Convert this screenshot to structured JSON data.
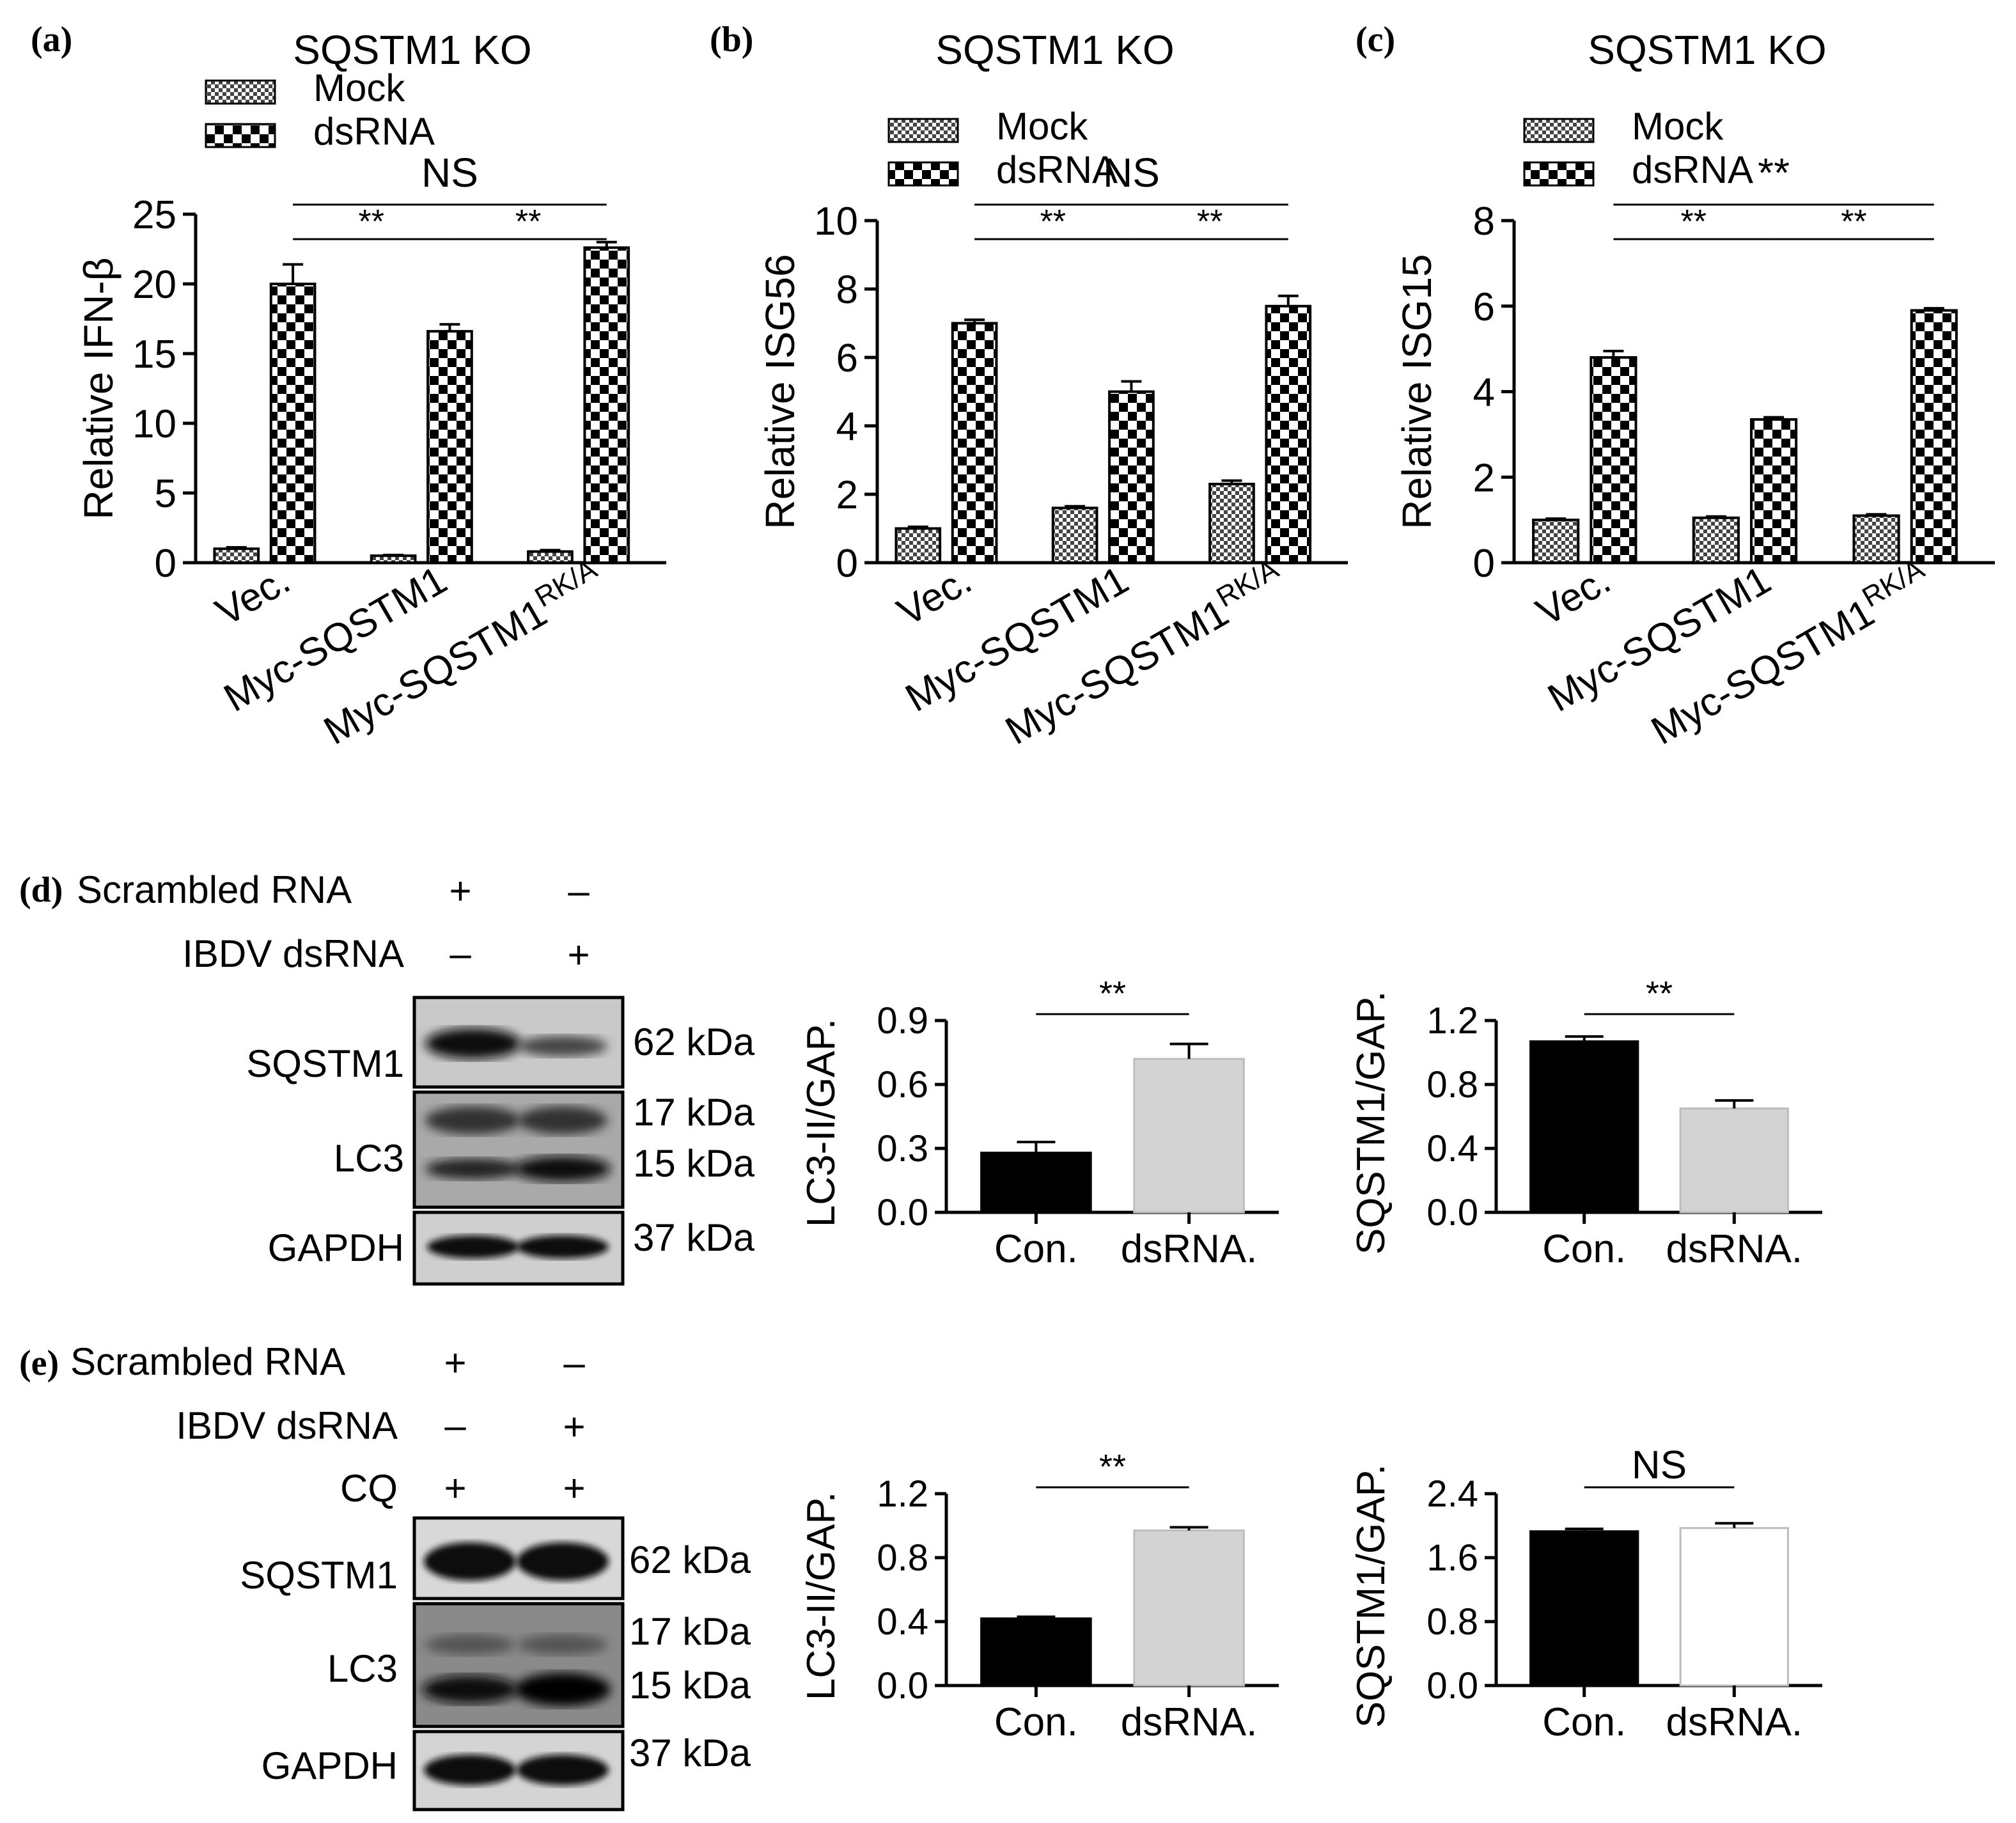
{
  "panel_labels": {
    "a": "(a)",
    "b": "(b)",
    "c": "(c)",
    "d": "(d)",
    "e": "(e)"
  },
  "legend_labels": {
    "mock": "Mock",
    "dsrna": "dsRNA"
  },
  "colors": {
    "mock_pattern": "fine-checker",
    "dsrna_pattern": "coarse-checker",
    "con_bar": "#000000",
    "dsrna_bar": "#d3d3d3",
    "white_bar": "#ffffff"
  },
  "chart_data": [
    {
      "id": "a",
      "type": "bar",
      "title": "SQSTM1 KO",
      "ylabel": "Relative IFN-β",
      "categories": [
        "Vec.",
        "Myc-SQSTM1",
        "Myc-SQSTM1"
      ],
      "category_sup": [
        "",
        "",
        "RK/A"
      ],
      "ylim": [
        0,
        25
      ],
      "yticks": [
        "0",
        "5",
        "10",
        "15",
        "20",
        "25"
      ],
      "series": [
        {
          "name": "Mock",
          "values": [
            1.0,
            0.5,
            0.8
          ],
          "errors": [
            0.1,
            0.05,
            0.1
          ]
        },
        {
          "name": "dsRNA",
          "values": [
            20.0,
            16.6,
            22.6
          ],
          "errors": [
            1.4,
            0.5,
            0.4
          ]
        }
      ],
      "significance": [
        {
          "from": 1,
          "to": 3,
          "label": "NS"
        },
        {
          "from": 1,
          "to": 2,
          "label": "**"
        },
        {
          "from": 2,
          "to": 3,
          "label": "**"
        }
      ]
    },
    {
      "id": "b",
      "type": "bar",
      "title": "SQSTM1 KO",
      "ylabel": "Relative ISG56",
      "categories": [
        "Vec.",
        "Myc-SQSTM1",
        "Myc-SQSTM1"
      ],
      "category_sup": [
        "",
        "",
        "RK/A"
      ],
      "ylim": [
        0,
        10
      ],
      "yticks": [
        "0",
        "2",
        "4",
        "6",
        "8",
        "10"
      ],
      "series": [
        {
          "name": "Mock",
          "values": [
            1.0,
            1.6,
            2.3
          ],
          "errors": [
            0.05,
            0.05,
            0.1
          ]
        },
        {
          "name": "dsRNA",
          "values": [
            7.0,
            5.0,
            7.5
          ],
          "errors": [
            0.1,
            0.3,
            0.3
          ]
        }
      ],
      "significance": [
        {
          "from": 1,
          "to": 3,
          "label": "NS"
        },
        {
          "from": 1,
          "to": 2,
          "label": "**"
        },
        {
          "from": 2,
          "to": 3,
          "label": "**"
        }
      ]
    },
    {
      "id": "c",
      "type": "bar",
      "title": "SQSTM1 KO",
      "ylabel": "Relative ISG15",
      "categories": [
        "Vec.",
        "Myc-SQSTM1",
        "Myc-SQSTM1"
      ],
      "category_sup": [
        "",
        "",
        "RK/A"
      ],
      "ylim": [
        0,
        8
      ],
      "yticks": [
        "0",
        "2",
        "4",
        "6",
        "8"
      ],
      "series": [
        {
          "name": "Mock",
          "values": [
            1.0,
            1.05,
            1.1
          ],
          "errors": [
            0.03,
            0.03,
            0.03
          ]
        },
        {
          "name": "dsRNA",
          "values": [
            4.8,
            3.35,
            5.9
          ],
          "errors": [
            0.15,
            0.05,
            0.05
          ]
        }
      ],
      "significance": [
        {
          "from": 1,
          "to": 3,
          "label": "**"
        },
        {
          "from": 1,
          "to": 2,
          "label": "**"
        },
        {
          "from": 2,
          "to": 3,
          "label": "**"
        }
      ]
    },
    {
      "id": "d1",
      "type": "bar",
      "title": "",
      "ylabel": "LC3-II/GAP.",
      "categories": [
        "Con.",
        "dsRNA."
      ],
      "ylim": [
        0,
        0.9
      ],
      "yticks": [
        "0.0",
        "0.3",
        "0.6",
        "0.9"
      ],
      "values": [
        0.28,
        0.72
      ],
      "errors": [
        0.05,
        0.07
      ],
      "significance": [
        {
          "from": 1,
          "to": 2,
          "label": "**"
        }
      ]
    },
    {
      "id": "d2",
      "type": "bar",
      "title": "",
      "ylabel": "SQSTM1/GAP.",
      "categories": [
        "Con.",
        "dsRNA."
      ],
      "ylim": [
        0,
        1.2
      ],
      "yticks": [
        "0.0",
        "0.4",
        "0.8",
        "1.2"
      ],
      "values": [
        1.07,
        0.65
      ],
      "errors": [
        0.03,
        0.05
      ],
      "significance": [
        {
          "from": 1,
          "to": 2,
          "label": "**"
        }
      ]
    },
    {
      "id": "e1",
      "type": "bar",
      "title": "",
      "ylabel": "LC3-II/GAP.",
      "categories": [
        "Con.",
        "dsRNA."
      ],
      "ylim": [
        0,
        1.2
      ],
      "yticks": [
        "0.0",
        "0.4",
        "0.8",
        "1.2"
      ],
      "values": [
        0.42,
        0.97
      ],
      "errors": [
        0.01,
        0.02
      ],
      "significance": [
        {
          "from": 1,
          "to": 2,
          "label": "**"
        }
      ]
    },
    {
      "id": "e2",
      "type": "bar",
      "title": "",
      "ylabel": "SQSTM1/GAP.",
      "categories": [
        "Con.",
        "dsRNA."
      ],
      "ylim": [
        0,
        2.4
      ],
      "yticks": [
        "0.0",
        "0.8",
        "1.6",
        "2.4"
      ],
      "values": [
        1.93,
        1.97
      ],
      "errors": [
        0.03,
        0.06
      ],
      "significance": [
        {
          "from": 1,
          "to": 2,
          "label": "NS"
        }
      ]
    }
  ],
  "blots": {
    "d": {
      "conditions": [
        {
          "label": "Scrambled RNA",
          "marks": [
            "+",
            "–"
          ]
        },
        {
          "label": "IBDV dsRNA",
          "marks": [
            "–",
            "+"
          ]
        }
      ],
      "rows": [
        {
          "protein": "SQSTM1",
          "sizes": [
            "62 kDa"
          ]
        },
        {
          "protein": "LC3",
          "sizes": [
            "17 kDa",
            "15 kDa"
          ]
        },
        {
          "protein": "GAPDH",
          "sizes": [
            "37 kDa"
          ]
        }
      ]
    },
    "e": {
      "conditions": [
        {
          "label": "Scrambled RNA",
          "marks": [
            "+",
            "–"
          ]
        },
        {
          "label": "IBDV dsRNA",
          "marks": [
            "–",
            "+"
          ]
        },
        {
          "label": "CQ",
          "marks": [
            "+",
            "+"
          ]
        }
      ],
      "rows": [
        {
          "protein": "SQSTM1",
          "sizes": [
            "62 kDa"
          ]
        },
        {
          "protein": "LC3",
          "sizes": [
            "17 kDa",
            "15 kDa"
          ]
        },
        {
          "protein": "GAPDH",
          "sizes": [
            "37 kDa"
          ]
        }
      ]
    }
  }
}
